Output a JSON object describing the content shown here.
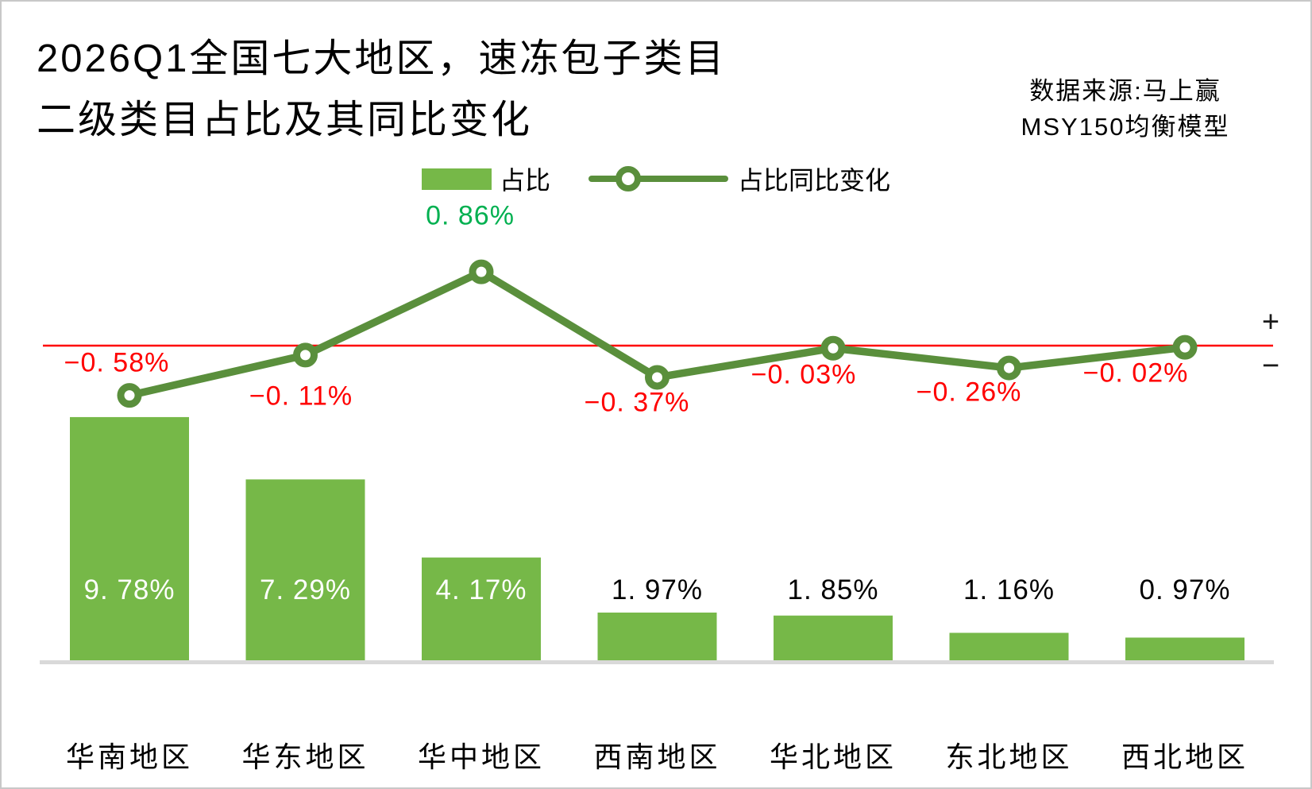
{
  "title": {
    "line1": "2026Q1全国七大地区，速冻包子类目",
    "line2": "二级类目占比及其同比变化"
  },
  "source": {
    "line1": "数据来源:马上赢",
    "line2": "MSY150均衡模型"
  },
  "legend": {
    "bar_label": "占比",
    "line_label": "占比同比变化"
  },
  "zero_axis": {
    "plus_sign": "+",
    "minus_sign": "−"
  },
  "colors": {
    "bar": "#76B848",
    "line": "#5A8F3C",
    "marker_fill": "#FFFFFF",
    "zero_line": "#FF0000",
    "positive_label": "#00B050",
    "negative_label": "#FF0000",
    "baseline": "#D9D9D9",
    "bar_label_inside": "#FFFFFF",
    "bar_label_outside": "#000000"
  },
  "chart_data": {
    "type": "bar+line combo",
    "title": "2026Q1全国七大地区，速冻包子类目二级类目占比及其同比变化",
    "categories": [
      "华南地区",
      "华东地区",
      "华中地区",
      "西南地区",
      "华北地区",
      "东北地区",
      "西北地区"
    ],
    "series": [
      {
        "name": "占比",
        "type": "bar",
        "unit": "%",
        "values": [
          9.78,
          7.29,
          4.17,
          1.97,
          1.85,
          1.16,
          0.97
        ],
        "labels": [
          "9. 78%",
          "7. 29%",
          "4. 17%",
          "1. 97%",
          "1. 85%",
          "1. 16%",
          "0. 97%"
        ]
      },
      {
        "name": "占比同比变化",
        "type": "line",
        "unit": "%",
        "values": [
          -0.58,
          -0.11,
          0.86,
          -0.37,
          -0.03,
          -0.26,
          -0.02
        ],
        "labels": [
          "−0. 58%",
          "−0. 11%",
          "0. 86%",
          "−0. 37%",
          "−0. 03%",
          "−0. 26%",
          "−0. 02%"
        ]
      }
    ],
    "zero_line_value": 0,
    "legend_position": "top-center",
    "grid": false,
    "value_axis_hidden": true
  }
}
